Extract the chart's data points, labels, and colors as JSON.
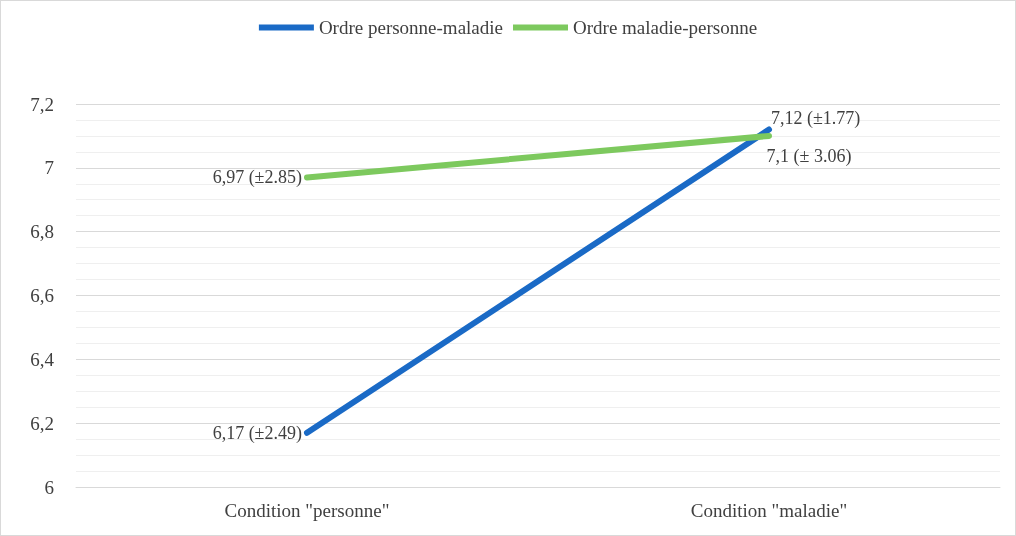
{
  "chart_data": {
    "type": "line",
    "categories": [
      "Condition \"personne\"",
      "Condition \"maladie\""
    ],
    "series": [
      {
        "name": "Ordre personne-maladie",
        "color": "#1a6ac6",
        "values": [
          6.17,
          7.12
        ],
        "value_labels": [
          "6,17 (±2.49)",
          "7,12 (±1.77)"
        ]
      },
      {
        "name": "Ordre maladie-personne",
        "color": "#7dc95e",
        "values": [
          6.97,
          7.1
        ],
        "value_labels": [
          "6,97 (±2.85)",
          "7,1 (± 3.06)"
        ]
      }
    ],
    "ylim": [
      6,
      7.2
    ],
    "yticks": [
      6,
      {
        "value": 6.2,
        "label": "6,2"
      },
      {
        "value": 6.4,
        "label": "6,4"
      },
      {
        "value": 6.6,
        "label": "6,6"
      },
      {
        "value": 6.8,
        "label": "6,8"
      },
      7,
      {
        "value": 7.2,
        "label": "7,2"
      }
    ],
    "grid": "y",
    "legend": "top",
    "marker": "none",
    "line_style": "solid"
  }
}
